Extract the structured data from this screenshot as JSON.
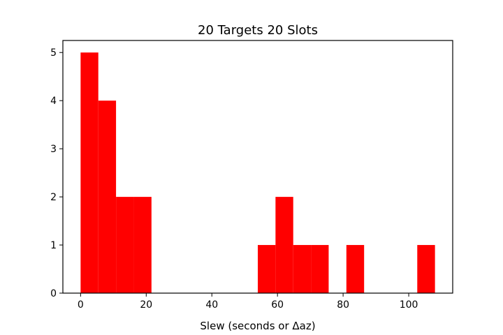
{
  "chart_data": {
    "type": "bar",
    "title": "20 Targets 20 Slots",
    "xlabel": "Slew (seconds or Δaz)",
    "ylabel": "",
    "xlim": [
      -5.4,
      113.4
    ],
    "ylim": [
      0,
      5.25
    ],
    "xticks": [
      0,
      20,
      40,
      60,
      80,
      100
    ],
    "yticks": [
      0,
      1,
      2,
      3,
      4,
      5
    ],
    "bin_edges": [
      0,
      5.4,
      10.8,
      16.2,
      21.6,
      27.0,
      32.4,
      37.8,
      43.2,
      48.6,
      54.0,
      59.4,
      64.8,
      70.2,
      75.6,
      81.0,
      86.4,
      91.8,
      97.2,
      102.6,
      108.0
    ],
    "counts": [
      5,
      4,
      2,
      2,
      0,
      0,
      0,
      0,
      0,
      0,
      1,
      2,
      1,
      1,
      0,
      1,
      0,
      0,
      0,
      1
    ],
    "bar_color": "#ff0000",
    "grid": false
  }
}
